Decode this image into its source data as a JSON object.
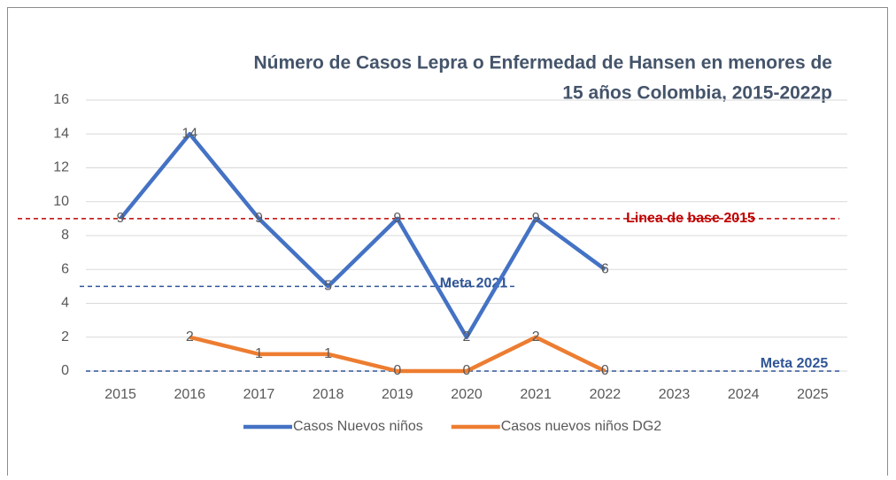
{
  "chart_data": {
    "type": "line",
    "title": [
      "Número de Casos Lepra o Enfermedad de Hansen en menores de",
      "15 años Colombia, 2015-2022p"
    ],
    "categories": [
      "2015",
      "2016",
      "2017",
      "2018",
      "2019",
      "2020",
      "2021",
      "2022",
      "2023",
      "2024",
      "2025"
    ],
    "series": [
      {
        "name": "Casos Nuevos niños",
        "color": "#4472c4",
        "values": [
          9,
          14,
          9,
          5,
          9,
          2,
          9,
          6,
          null,
          null,
          null
        ]
      },
      {
        "name": "Casos nuevos niños DG2",
        "color": "#ed7d31",
        "values": [
          null,
          2,
          1,
          1,
          0,
          0,
          2,
          0,
          null,
          null,
          null
        ]
      }
    ],
    "reference_lines": [
      {
        "label": "Linea de base 2015",
        "value": 9,
        "color": "#c00000"
      },
      {
        "label": "Meta 2021",
        "value": 5,
        "color": "#2f5597"
      },
      {
        "label": "Meta 2025",
        "value": 0,
        "color": "#2f5597"
      }
    ],
    "ylim": [
      0,
      16
    ],
    "yticks": [
      0,
      2,
      4,
      6,
      8,
      10,
      12,
      14,
      16
    ],
    "grid": true,
    "legend": "bottom"
  }
}
